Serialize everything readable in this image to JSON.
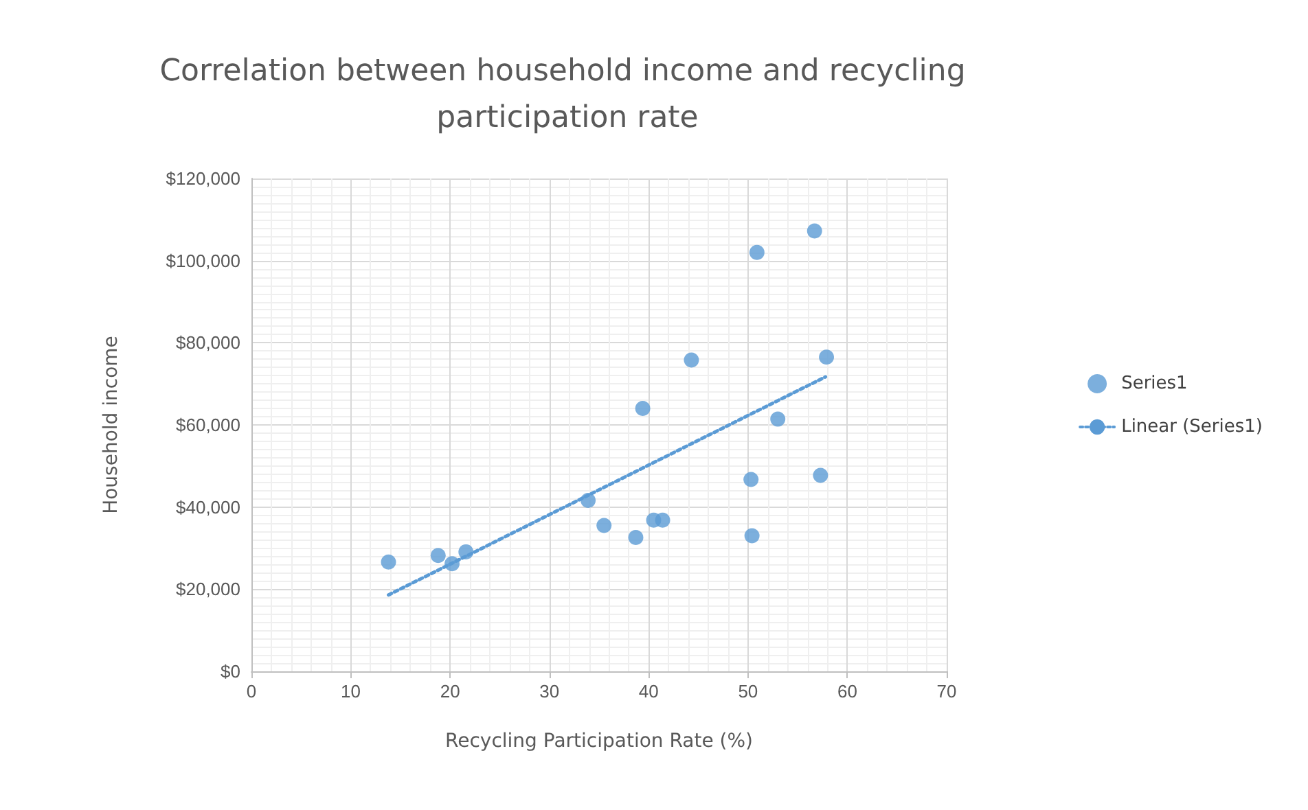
{
  "chart_data": {
    "type": "scatter",
    "title": "Correlation between household income and recycling participation rate",
    "xlabel": "Recycling Participation Rate (%)",
    "ylabel": "Household income",
    "xlim": [
      0,
      70
    ],
    "xticks": [
      0,
      10,
      20,
      30,
      40,
      50,
      60,
      70
    ],
    "ylim": [
      0,
      120000
    ],
    "yticks": [
      {
        "value": 0,
        "label": "$0"
      },
      {
        "value": 20000,
        "label": "$20,000"
      },
      {
        "value": 40000,
        "label": "$40,000"
      },
      {
        "value": 60000,
        "label": "$60,000"
      },
      {
        "value": 80000,
        "label": "$80,000"
      },
      {
        "value": 100000,
        "label": "$100,000"
      },
      {
        "value": 120000,
        "label": "$120,000"
      }
    ],
    "grid": true,
    "legend": "right",
    "marker": "circle",
    "series": [
      {
        "name": "Series1",
        "color": "#5b9bd5",
        "x": [
          13.8,
          18.8,
          20.2,
          21.6,
          33.9,
          35.5,
          38.7,
          39.4,
          40.5,
          41.4,
          44.3,
          50.3,
          50.4,
          50.9,
          53,
          56.7,
          57.3,
          57.9
        ],
        "values": [
          26600,
          28200,
          26200,
          29100,
          41600,
          35500,
          32600,
          64000,
          36800,
          36800,
          75800,
          46700,
          33000,
          102000,
          61400,
          107200,
          47700,
          76500
        ]
      },
      {
        "name": "Linear (Series1)",
        "type": "line",
        "line_style": "dotted",
        "marker": "none",
        "color": "#5b9bd5",
        "x": [
          13.8,
          57.8
        ],
        "values": [
          18600,
          71700
        ]
      }
    ]
  }
}
